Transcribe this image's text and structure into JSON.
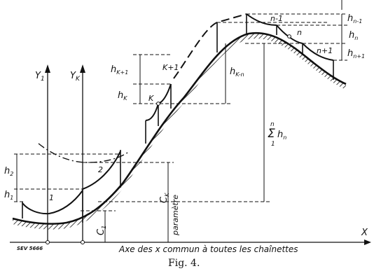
{
  "labels": {
    "y1": "Y",
    "y1_sub": "1",
    "yk": "Y",
    "yk_sub": "K",
    "x": "X",
    "h2": "h",
    "h2_sub": "2",
    "h1": "h",
    "h1_sub": "1",
    "hk1": "h",
    "hk1_sub": "K+1",
    "hk": "h",
    "hk_sub": "K",
    "hkn": "h",
    "hkn_sub": "K-n",
    "hn_1": "h",
    "hn_1_sub": "n-1",
    "hn": "h",
    "hn_sub": "n",
    "hn1": "h",
    "hn1_sub": "n+1",
    "c1": "C",
    "c1_sub": "1",
    "ck": "C",
    "ck_sub": "K",
    "param": "paramètre",
    "sum_sigma": "Σ",
    "sum_top": "n",
    "sum_bot": "1",
    "sum_h": "h",
    "sum_h_sub": "n",
    "n1": "1",
    "n2": "2",
    "nk": "K",
    "nk1": "K+1",
    "nnm1": "n-1",
    "nn": "n",
    "nnp1": "n+1",
    "axis_title": "Axe des x commun à toutes les chaînettes",
    "sev": "SEV 5666",
    "caption": "Fig. 4."
  }
}
